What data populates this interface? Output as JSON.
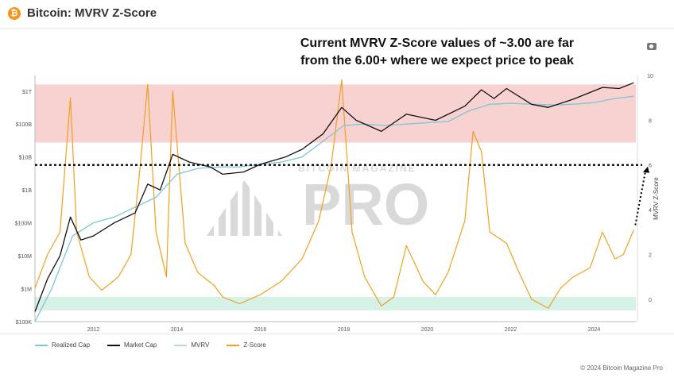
{
  "header": {
    "title": "Bitcoin: MVRV Z-Score",
    "logo_glyph": "₿"
  },
  "annotation": {
    "line1": "Current MVRV Z-Score values of ~3.00 are far",
    "line2": "from the 6.00+ where we expect price to peak"
  },
  "watermark": {
    "small": "BITCOIN MAGAZINE",
    "big": "PRO"
  },
  "copyright": "© 2024 Bitcoin Magazine Pro",
  "colors": {
    "realized_cap": "#7cc6d6",
    "market_cap": "#111111",
    "mvrv": "#b9d6e8",
    "zscore": "#f0a020",
    "red_band": "#f7c9c9",
    "green_band": "#cfeee0"
  },
  "chart_data": {
    "type": "line",
    "title": "Bitcoin: MVRV Z-Score",
    "x_ticks": [
      "2012",
      "2014",
      "2016",
      "2018",
      "2020",
      "2022",
      "2024"
    ],
    "x_range": [
      2010.6,
      2025.0
    ],
    "y_left_ticks": [
      {
        "label": "$1T",
        "value": 1000000000000.0
      },
      {
        "label": "$100B",
        "value": 100000000000.0
      },
      {
        "label": "$10B",
        "value": 10000000000.0
      },
      {
        "label": "$1B",
        "value": 1000000000.0
      },
      {
        "label": "$100M",
        "value": 100000000.0
      },
      {
        "label": "$10M",
        "value": 10000000.0
      },
      {
        "label": "$1M",
        "value": 1000000.0
      },
      {
        "label": "$100K",
        "value": 100000.0
      }
    ],
    "y_left_range": [
      100000.0,
      3000000000000.0
    ],
    "y_right_label": "MVRV Z-Score",
    "y_right_ticks": [
      0,
      2,
      4,
      6,
      8,
      10
    ],
    "y_right_range": [
      -1,
      10
    ],
    "bands": [
      {
        "name": "red",
        "from": 7,
        "to": 9.6
      },
      {
        "name": "green",
        "from": -0.5,
        "to": 0.1
      }
    ],
    "reference_line": {
      "value": 6,
      "style": "dotted"
    },
    "series": [
      {
        "name": "Realized Cap",
        "x": [
          2010.6,
          2011.0,
          2011.5,
          2012.0,
          2012.5,
          2013.0,
          2013.5,
          2014.0,
          2014.5,
          2015.0,
          2015.5,
          2016.0,
          2016.5,
          2017.0,
          2017.5,
          2018.0,
          2018.5,
          2019.0,
          2019.5,
          2020.0,
          2020.5,
          2021.0,
          2021.5,
          2022.0,
          2022.5,
          2023.0,
          2023.5,
          2024.0,
          2024.5,
          2024.95
        ],
        "values": [
          100000.0,
          1000000.0,
          40000000.0,
          100000000.0,
          150000000.0,
          300000000.0,
          600000000.0,
          3000000000.0,
          4500000000.0,
          5000000000.0,
          5000000000.0,
          6000000000.0,
          7000000000.0,
          10000000000.0,
          30000000000.0,
          90000000000.0,
          100000000000.0,
          90000000000.0,
          100000000000.0,
          110000000000.0,
          120000000000.0,
          250000000000.0,
          400000000000.0,
          430000000000.0,
          400000000000.0,
          380000000000.0,
          400000000000.0,
          450000000000.0,
          600000000000.0,
          700000000000.0
        ]
      },
      {
        "name": "Market Cap",
        "x": [
          2010.6,
          2010.9,
          2011.2,
          2011.45,
          2011.7,
          2012.0,
          2012.5,
          2013.0,
          2013.3,
          2013.6,
          2013.9,
          2014.3,
          2014.8,
          2015.1,
          2015.6,
          2016.0,
          2016.6,
          2017.0,
          2017.5,
          2017.95,
          2018.3,
          2018.9,
          2019.5,
          2020.2,
          2020.9,
          2021.3,
          2021.6,
          2021.9,
          2022.5,
          2022.9,
          2023.5,
          2024.2,
          2024.6,
          2024.95
        ],
        "values": [
          200000.0,
          2000000.0,
          10000000.0,
          150000000.0,
          30000000.0,
          40000000.0,
          100000000.0,
          200000000.0,
          1500000000.0,
          1000000000.0,
          12000000000.0,
          7000000000.0,
          5000000000.0,
          3000000000.0,
          3500000000.0,
          6000000000.0,
          10000000000.0,
          17000000000.0,
          50000000000.0,
          320000000000.0,
          130000000000.0,
          60000000000.0,
          200000000000.0,
          130000000000.0,
          350000000000.0,
          1100000000000.0,
          600000000000.0,
          1200000000000.0,
          400000000000.0,
          320000000000.0,
          570000000000.0,
          1300000000000.0,
          1200000000000.0,
          1800000000000.0
        ]
      },
      {
        "name": "MVRV",
        "x": [],
        "values": []
      },
      {
        "name": "Z-Score",
        "axis": "right",
        "x": [
          2010.6,
          2010.9,
          2011.2,
          2011.45,
          2011.6,
          2011.9,
          2012.2,
          2012.6,
          2012.9,
          2013.1,
          2013.3,
          2013.5,
          2013.75,
          2013.9,
          2014.2,
          2014.5,
          2014.9,
          2015.1,
          2015.5,
          2016.0,
          2016.5,
          2017.0,
          2017.4,
          2017.7,
          2017.95,
          2018.2,
          2018.5,
          2018.9,
          2019.2,
          2019.5,
          2019.9,
          2020.2,
          2020.5,
          2020.9,
          2021.1,
          2021.3,
          2021.5,
          2021.9,
          2022.2,
          2022.5,
          2022.9,
          2023.2,
          2023.5,
          2023.9,
          2024.2,
          2024.5,
          2024.7,
          2024.95
        ],
        "values": [
          0.5,
          2.0,
          3.0,
          9.0,
          3.0,
          1.0,
          0.4,
          1.0,
          2.0,
          5.5,
          9.6,
          3.0,
          1.0,
          9.3,
          2.5,
          1.2,
          0.6,
          0.1,
          -0.2,
          0.2,
          0.8,
          1.8,
          3.5,
          6.0,
          9.8,
          3.0,
          1.0,
          -0.3,
          0.1,
          2.4,
          0.8,
          0.2,
          1.2,
          3.5,
          7.5,
          6.6,
          3.0,
          2.5,
          1.2,
          0.0,
          -0.4,
          0.5,
          1.0,
          1.4,
          3.0,
          1.8,
          2.0,
          3.1
        ]
      }
    ],
    "legend": [
      "Realized Cap",
      "Market Cap",
      "MVRV",
      "Z-Score"
    ],
    "legend_position": "bottom-left"
  }
}
